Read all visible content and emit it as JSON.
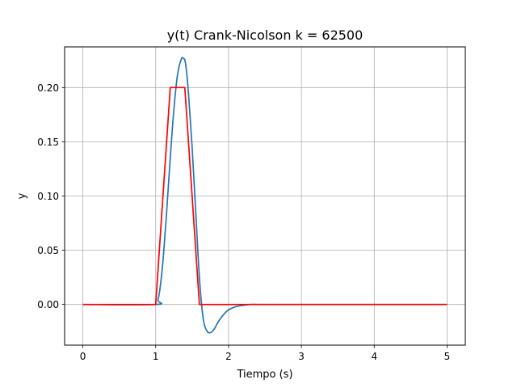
{
  "chart_data": {
    "type": "line",
    "title": "y(t) Crank-Nicolson k = 62500",
    "xlabel": "Tiempo (s)",
    "ylabel": "y",
    "xlim": [
      -0.25,
      5.25
    ],
    "ylim": [
      -0.0375,
      0.2375
    ],
    "xticks": [
      0,
      1,
      2,
      3,
      4,
      5
    ],
    "xtick_labels": [
      "0",
      "1",
      "2",
      "3",
      "4",
      "5"
    ],
    "yticks": [
      0.0,
      0.05,
      0.1,
      0.15,
      0.2
    ],
    "ytick_labels": [
      "0.00",
      "0.05",
      "0.10",
      "0.15",
      "0.20"
    ],
    "grid": true,
    "legend": "none",
    "series": [
      {
        "color": "#1f77b4",
        "x": [
          0,
          1.0,
          1.03,
          1.06,
          1.1,
          1.15,
          1.2,
          1.25,
          1.3,
          1.35,
          1.38,
          1.41,
          1.45,
          1.5,
          1.55,
          1.6,
          1.65,
          1.7,
          1.75,
          1.8,
          1.85,
          1.9,
          1.95,
          2.0,
          2.1,
          2.2,
          2.3,
          2.4,
          2.5,
          5.0
        ],
        "y": [
          0,
          0,
          0.004,
          0.015,
          0.04,
          0.085,
          0.135,
          0.18,
          0.212,
          0.226,
          0.227,
          0.222,
          0.195,
          0.145,
          0.085,
          0.025,
          -0.012,
          -0.024,
          -0.026,
          -0.023,
          -0.017,
          -0.012,
          -0.008,
          -0.005,
          -0.002,
          -0.0008,
          0,
          0,
          0,
          0
        ]
      },
      {
        "color": "#ff0000",
        "x": [
          0,
          1.0,
          1.2,
          1.4,
          1.6,
          5.0
        ],
        "y": [
          0,
          0,
          0.2,
          0.2,
          0,
          0
        ]
      }
    ]
  }
}
